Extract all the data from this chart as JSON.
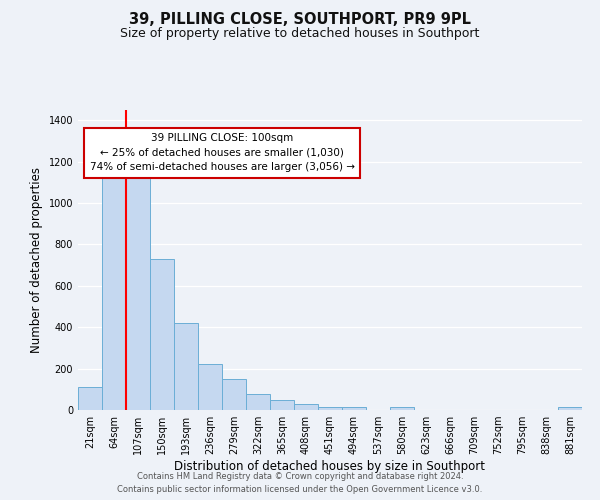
{
  "title": "39, PILLING CLOSE, SOUTHPORT, PR9 9PL",
  "subtitle": "Size of property relative to detached houses in Southport",
  "xlabel": "Distribution of detached houses by size in Southport",
  "ylabel": "Number of detached properties",
  "bar_labels": [
    "21sqm",
    "64sqm",
    "107sqm",
    "150sqm",
    "193sqm",
    "236sqm",
    "279sqm",
    "322sqm",
    "365sqm",
    "408sqm",
    "451sqm",
    "494sqm",
    "537sqm",
    "580sqm",
    "623sqm",
    "666sqm",
    "709sqm",
    "752sqm",
    "795sqm",
    "838sqm",
    "881sqm"
  ],
  "bar_values": [
    110,
    1155,
    1145,
    730,
    420,
    220,
    150,
    75,
    50,
    30,
    15,
    15,
    0,
    15,
    0,
    0,
    0,
    0,
    0,
    0,
    15
  ],
  "bar_color": "#c5d8f0",
  "bar_edgecolor": "#6baed6",
  "red_line_x": 1.5,
  "annotation_title": "39 PILLING CLOSE: 100sqm",
  "annotation_line1": "← 25% of detached houses are smaller (1,030)",
  "annotation_line2": "74% of semi-detached houses are larger (3,056) →",
  "annotation_box_color": "#ffffff",
  "annotation_box_edgecolor": "#cc0000",
  "ylim": [
    0,
    1450
  ],
  "yticks": [
    0,
    200,
    400,
    600,
    800,
    1000,
    1200,
    1400
  ],
  "footer_line1": "Contains HM Land Registry data © Crown copyright and database right 2024.",
  "footer_line2": "Contains public sector information licensed under the Open Government Licence v3.0.",
  "bg_color": "#eef2f8",
  "plot_bg_color": "#eef2f8",
  "title_fontsize": 10.5,
  "subtitle_fontsize": 9,
  "axis_label_fontsize": 8.5,
  "tick_fontsize": 7,
  "footer_fontsize": 6,
  "annotation_fontsize": 7.5
}
